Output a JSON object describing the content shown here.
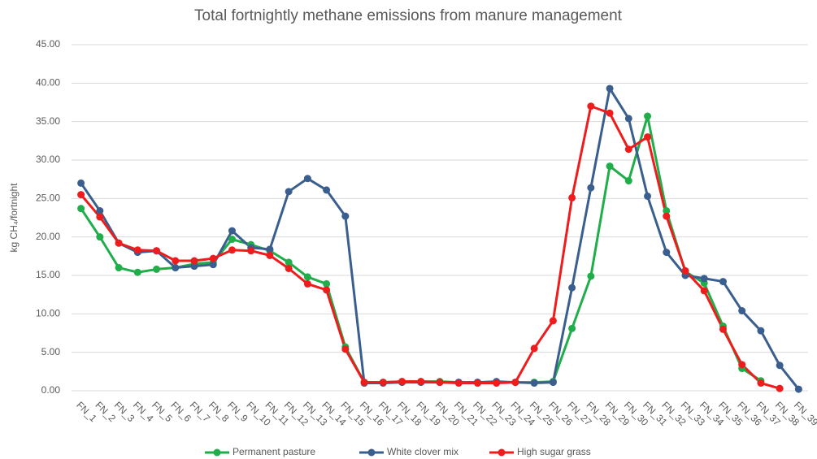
{
  "chart_data": {
    "type": "line",
    "title": "Total fortnightly methane emissions from manure management",
    "y_label": "kg CH₄/fortnight",
    "categories": [
      "FN_1",
      "FN_2",
      "FN_3",
      "FN_4",
      "FN_5",
      "FN_6",
      "FN_7",
      "FN_8",
      "FN_9",
      "FN_10",
      "FN_11",
      "FN_12",
      "FN_13",
      "FN_14",
      "FN_15",
      "FN_16",
      "FN_17",
      "FN_18",
      "FN_19",
      "FN_20",
      "FN_21",
      "FN_22",
      "FN_23",
      "FN_24",
      "FN_25",
      "FN_26",
      "FN_27",
      "FN_28",
      "FN_29",
      "FN_30",
      "FN_31",
      "FN_32",
      "FN_33",
      "FN_34",
      "FN_35",
      "FN_36",
      "FN_37",
      "FN_38",
      "FN_39"
    ],
    "series": [
      {
        "name": "Permanent pasture",
        "color": "#1fae4a",
        "values": [
          23.7,
          20.0,
          16.0,
          15.4,
          15.8,
          16.0,
          16.5,
          16.7,
          19.7,
          19.0,
          18.2,
          16.7,
          14.8,
          13.9,
          5.7,
          1.1,
          1.1,
          1.2,
          1.2,
          1.2,
          1.1,
          1.1,
          1.1,
          1.1,
          1.1,
          1.2,
          8.1,
          14.9,
          29.2,
          27.3,
          35.7,
          23.4,
          15.5,
          14.0,
          8.4,
          2.9,
          1.3,
          null,
          null
        ]
      },
      {
        "name": "White clover mix",
        "color": "#3a5f8f",
        "values": [
          27.0,
          23.4,
          19.2,
          18.0,
          18.2,
          16.0,
          16.2,
          16.4,
          20.8,
          18.6,
          18.4,
          25.9,
          27.6,
          26.1,
          22.7,
          1.0,
          1.0,
          1.1,
          1.1,
          1.1,
          1.1,
          1.1,
          1.2,
          1.1,
          1.0,
          1.1,
          13.4,
          26.4,
          39.3,
          35.4,
          25.3,
          18.0,
          15.0,
          14.6,
          14.2,
          10.4,
          7.8,
          3.3,
          0.2
        ]
      },
      {
        "name": "High sugar grass",
        "color": "#ee1c1c",
        "values": [
          25.5,
          22.6,
          19.2,
          18.3,
          18.2,
          16.9,
          16.9,
          17.2,
          18.3,
          18.2,
          17.6,
          15.9,
          13.9,
          13.1,
          5.4,
          1.1,
          1.1,
          1.2,
          1.2,
          1.1,
          1.0,
          1.0,
          1.0,
          1.1,
          5.5,
          9.1,
          25.1,
          37.0,
          36.1,
          31.4,
          33.0,
          22.7,
          15.6,
          13.0,
          8.0,
          3.4,
          1.0,
          0.3,
          null
        ]
      }
    ],
    "ylim": [
      0,
      45
    ],
    "yticks": [
      {
        "value": 0,
        "label": "0.00"
      },
      {
        "value": 5,
        "label": "5.00"
      },
      {
        "value": 10,
        "label": "10.00"
      },
      {
        "value": 15,
        "label": "15.00"
      },
      {
        "value": 20,
        "label": "20.00"
      },
      {
        "value": 25,
        "label": "25.00"
      },
      {
        "value": 30,
        "label": "30.00"
      },
      {
        "value": 35,
        "label": "35.00"
      },
      {
        "value": 40,
        "label": "40.00"
      },
      {
        "value": 45,
        "label": "45.00"
      }
    ],
    "grid": true,
    "legend": "bottom"
  }
}
